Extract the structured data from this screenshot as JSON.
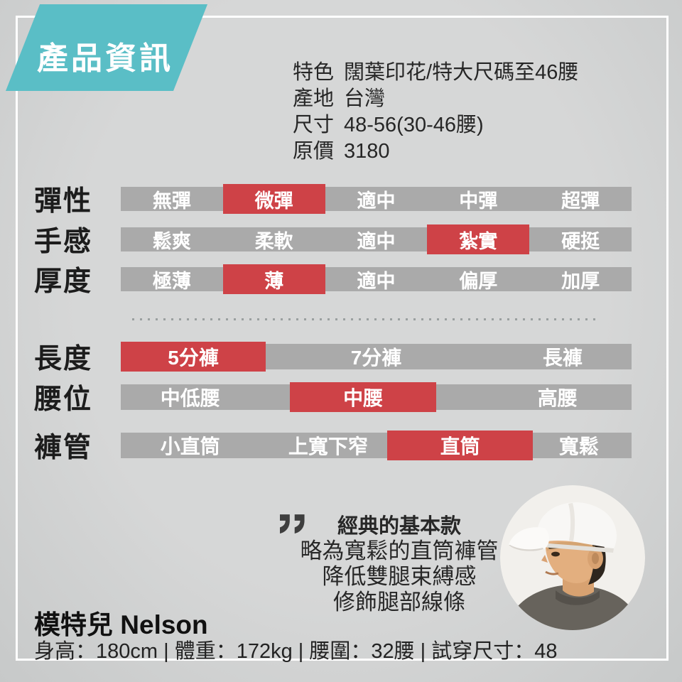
{
  "colors": {
    "accent_teal": "#5abec6",
    "highlight_red": "#ce4247",
    "bar_gray": "#aaaaaa"
  },
  "banner": {
    "title": "產品資訊"
  },
  "product_info": {
    "rows": [
      {
        "label": "特色",
        "value": "闊葉印花/特大尺碼至46腰"
      },
      {
        "label": "產地",
        "value": "台灣"
      },
      {
        "label": "尺寸",
        "value": "48-56(30-46腰)"
      },
      {
        "label": "原價",
        "value": "3180"
      }
    ]
  },
  "attribute_scales": [
    {
      "label": "彈性",
      "options": [
        "無彈",
        "微彈",
        "適中",
        "中彈",
        "超彈"
      ],
      "selected_index": 1,
      "selected": "微彈"
    },
    {
      "label": "手感",
      "options": [
        "鬆爽",
        "柔軟",
        "適中",
        "紮實",
        "硬挺"
      ],
      "selected_index": 3,
      "selected": "紮實"
    },
    {
      "label": "厚度",
      "options": [
        "極薄",
        "薄",
        "適中",
        "偏厚",
        "加厚"
      ],
      "selected_index": 1,
      "selected": "薄"
    }
  ],
  "fit_scales": [
    {
      "label": "長度",
      "selected": "5分褲",
      "red_left_pct": 0,
      "red_width_pct": 28.4,
      "other_options": [
        {
          "text": "7分褲",
          "center_pct": 50
        },
        {
          "text": "長褲",
          "center_pct": 86.5
        }
      ]
    },
    {
      "label": "腰位",
      "selected": "中腰",
      "red_left_pct": 33.1,
      "red_width_pct": 28.7,
      "other_options": [
        {
          "text": "中低腰",
          "center_pct": 13.6
        },
        {
          "text": "高腰",
          "center_pct": 85.5
        }
      ]
    },
    {
      "label": "褲管",
      "selected": "直筒",
      "red_left_pct": 52.2,
      "red_width_pct": 28.5,
      "other_options": [
        {
          "text": "小直筒",
          "center_pct": 13.6
        },
        {
          "text": "上寬下窄",
          "center_pct": 40.6
        },
        {
          "text": "寬鬆",
          "center_pct": 89.7
        }
      ]
    }
  ],
  "quote": {
    "icon": "quote-icon",
    "title": "經典的基本款",
    "lines": [
      "略為寬鬆的直筒褲管",
      "降低雙腿束縛感",
      "修飾腿部線條"
    ]
  },
  "model": {
    "name": "模特兒 Nelson",
    "stats": "身高：180cm | 體重：172kg | 腰圍：32腰 | 試穿尺寸：48",
    "photo": "model-headshot"
  }
}
